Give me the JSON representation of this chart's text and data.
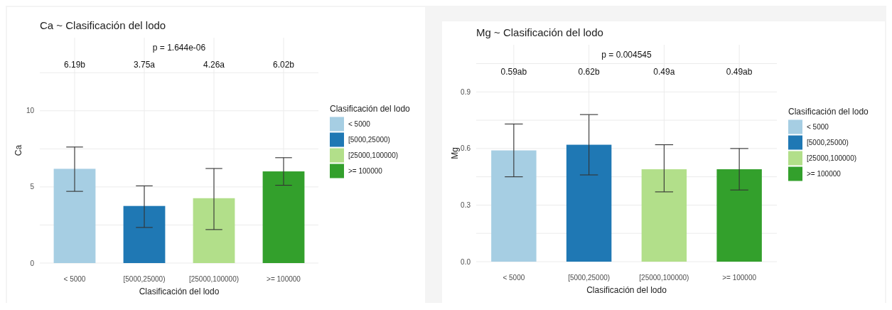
{
  "chart_data": [
    {
      "type": "bar",
      "title": "Ca ~ Clasificación del lodo",
      "xlabel": "Clasificación del lodo",
      "ylabel": "Ca",
      "legend_title": "Clasificación del lodo",
      "legend": "right",
      "grid": true,
      "categories": [
        "< 5000",
        "[5000,25000)",
        "[25000,100000)",
        ">= 100000"
      ],
      "series": [
        {
          "name": "< 5000",
          "color": "#a6cee3",
          "values": [
            6.19,
            null,
            null,
            null
          ],
          "errors": [
            [
              4.71,
              7.62
            ],
            null,
            null,
            null
          ]
        },
        {
          "name": "[5000,25000)",
          "color": "#1f78b4",
          "values": [
            null,
            3.75,
            null,
            null
          ],
          "errors": [
            null,
            [
              2.34,
              5.07
            ],
            null,
            null
          ]
        },
        {
          "name": "[25000,100000)",
          "color": "#b2df8a",
          "values": [
            null,
            null,
            4.26,
            null
          ],
          "errors": [
            null,
            null,
            [
              2.2,
              6.21
            ],
            null
          ]
        },
        {
          "name": ">= 100000",
          "color": "#33a02c",
          "values": [
            null,
            null,
            null,
            6.02
          ],
          "errors": [
            null,
            null,
            null,
            [
              5.11,
              6.92
            ]
          ]
        }
      ],
      "ylim": [
        0,
        14.8
      ],
      "yticks": [
        0,
        {
          "value": 2.5,
          "label": null
        },
        5,
        {
          "value": 7.5,
          "label": null
        },
        10,
        {
          "value": 12.5,
          "label": null
        }
      ],
      "annotations": [
        "p = 1.644e-06",
        "6.19b",
        "3.75a",
        "4.26a",
        "6.02b"
      ]
    },
    {
      "type": "bar",
      "title": "Mg ~ Clasificación del lodo",
      "xlabel": "Clasificación del lodo",
      "ylabel": "Mg",
      "legend_title": "Clasificación del lodo",
      "legend": "right",
      "grid": true,
      "categories": [
        "< 5000",
        "[5000,25000)",
        "[25000,100000)",
        ">= 100000"
      ],
      "series": [
        {
          "name": "< 5000",
          "color": "#a6cee3",
          "values": [
            0.59,
            null,
            null,
            null
          ],
          "errors": [
            [
              0.45,
              0.73
            ],
            null,
            null,
            null
          ]
        },
        {
          "name": "[5000,25000)",
          "color": "#1f78b4",
          "values": [
            null,
            0.62,
            null,
            null
          ],
          "errors": [
            null,
            [
              0.46,
              0.78
            ],
            null,
            null
          ]
        },
        {
          "name": "[25000,100000)",
          "color": "#b2df8a",
          "values": [
            null,
            null,
            0.49,
            null
          ],
          "errors": [
            null,
            null,
            [
              0.37,
              0.62
            ],
            null
          ]
        },
        {
          "name": ">= 100000",
          "color": "#33a02c",
          "values": [
            null,
            null,
            null,
            0.49
          ],
          "errors": [
            null,
            null,
            null,
            [
              0.38,
              0.6
            ]
          ]
        }
      ],
      "ylim": [
        0,
        1.15
      ],
      "yticks": [
        {
          "value": 0,
          "label": "0.0"
        },
        {
          "value": 0.15,
          "label": null
        },
        0.3,
        {
          "value": 0.45,
          "label": null
        },
        0.6,
        {
          "value": 0.75,
          "label": null
        },
        0.9,
        {
          "value": 1.05,
          "label": null
        }
      ],
      "annotations": [
        "p = 0.004545",
        "0.59ab",
        "0.62b",
        "0.49a",
        "0.49ab"
      ]
    }
  ]
}
